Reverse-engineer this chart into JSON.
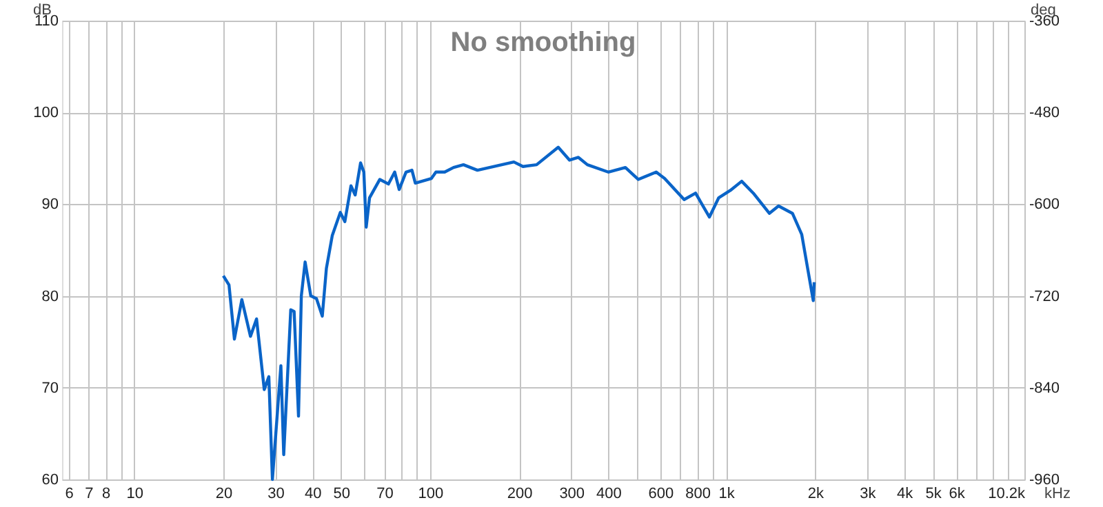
{
  "chart_data": {
    "type": "line",
    "title": "No smoothing",
    "xlabel": "kHz",
    "ylabel": "dB",
    "y2label": "deg",
    "log": "x",
    "grid": true,
    "marker": "none",
    "line_style": "solid",
    "xlim": [
      5.7,
      10200
    ],
    "xticks": [
      6,
      7,
      8,
      {
        "value": 9,
        "label": null
      },
      10,
      20,
      30,
      40,
      50,
      {
        "value": 60,
        "label": null
      },
      70,
      {
        "value": 80,
        "label": null
      },
      {
        "value": 90,
        "label": null
      },
      100,
      200,
      300,
      400,
      {
        "value": 500,
        "label": null
      },
      600,
      {
        "value": 700,
        "label": null
      },
      800,
      {
        "value": 900,
        "label": null
      },
      {
        "value": 1000,
        "label": "1k"
      },
      {
        "value": 2000,
        "label": "2k"
      },
      {
        "value": 3000,
        "label": "3k"
      },
      {
        "value": 4000,
        "label": "4k"
      },
      {
        "value": 5000,
        "label": "5k"
      },
      {
        "value": 6000,
        "label": "6k"
      },
      {
        "value": 7000,
        "label": null
      },
      {
        "value": 8000,
        "label": null
      },
      {
        "value": 9000,
        "label": null
      },
      {
        "value": 10200,
        "label": "10.2k"
      }
    ],
    "ylim": [
      60,
      110
    ],
    "yticks": [
      60,
      70,
      80,
      90,
      100,
      110
    ],
    "y2lim": [
      -960,
      -360
    ],
    "y2ticks": [
      -960,
      -840,
      -720,
      -600,
      -480,
      -360
    ],
    "series": [
      {
        "color": "#0a64c8",
        "x": [
          20,
          20.9,
          21.8,
          23.1,
          24.7,
          25.9,
          27.5,
          28.5,
          29.3,
          31.3,
          32.0,
          33.8,
          34.7,
          35.9,
          36.7,
          37.8,
          39.5,
          41.3,
          43.2,
          44.6,
          46.7,
          49.7,
          51.5,
          54.0,
          55.8,
          58.2,
          59.7,
          60.8,
          62.4,
          67.6,
          72.3,
          75.9,
          78.6,
          82.9,
          86.8,
          89.1,
          101,
          104.6,
          112,
          120,
          129.6,
          144.5,
          191.9,
          206,
          229,
          271,
          296,
          317,
          340,
          400,
          457,
          505,
          581,
          620,
          722,
          789,
          879,
          945,
          1034,
          1130,
          1237,
          1401,
          1505,
          1677,
          1803,
          1972,
          1987
        ],
        "values": [
          82.2,
          81.2,
          75.3,
          79.6,
          75.6,
          77.5,
          69.8,
          71.2,
          60,
          72.4,
          62.7,
          78.5,
          78.3,
          66.9,
          80,
          83.7,
          80,
          79.7,
          77.8,
          83,
          86.6,
          89.1,
          88.1,
          92.0,
          91.0,
          94.5,
          93.5,
          87.5,
          90.7,
          92.7,
          92.2,
          93.5,
          91.6,
          93.5,
          93.7,
          92.3,
          92.8,
          93.5,
          93.5,
          94.0,
          94.3,
          93.7,
          94.6,
          94.1,
          94.3,
          96.2,
          94.8,
          95.1,
          94.3,
          93.5,
          94.0,
          92.7,
          93.5,
          92.8,
          90.5,
          91.2,
          88.6,
          90.7,
          91.5,
          92.5,
          91.2,
          89.0,
          89.8,
          89.0,
          86.7,
          79.5,
          81.5
        ]
      }
    ]
  }
}
